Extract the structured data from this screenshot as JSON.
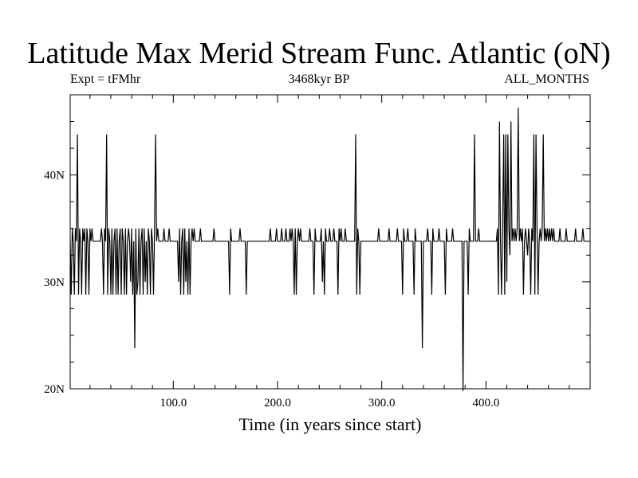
{
  "chart_data": {
    "type": "line",
    "title": "Latitude Max Merid Stream Func. Atlantic (oN)",
    "subtitle_left": "Expt = tFMhr",
    "subtitle_center": "3468kyr BP",
    "subtitle_right": "ALL_MONTHS",
    "xlabel": "Time (in years since start)",
    "ylabel": "",
    "xlim": [
      1,
      500
    ],
    "ylim": [
      20,
      47.5
    ],
    "x_ticks": [
      100,
      200,
      300,
      400
    ],
    "x_tick_labels": [
      "100.0",
      "200.0",
      "300.0",
      "400.0"
    ],
    "y_ticks": [
      20,
      30,
      40
    ],
    "y_tick_labels": [
      "20N",
      "30N",
      "40N"
    ],
    "grid": false,
    "series": [
      {
        "color": "#000000",
        "points": [
          [
            1,
            33.8
          ],
          [
            2,
            28.8
          ],
          [
            3,
            35
          ],
          [
            4,
            33.8
          ],
          [
            5,
            28.8
          ],
          [
            6,
            35
          ],
          [
            7,
            33.8
          ],
          [
            8,
            43.8
          ],
          [
            9,
            28.8
          ],
          [
            10,
            35
          ],
          [
            11,
            33.8
          ],
          [
            12,
            28.8
          ],
          [
            13,
            35
          ],
          [
            14,
            33.8
          ],
          [
            15,
            35
          ],
          [
            16,
            28.8
          ],
          [
            17,
            35
          ],
          [
            18,
            33.8
          ],
          [
            19,
            28.8
          ],
          [
            20,
            35
          ],
          [
            21,
            33.8
          ],
          [
            22,
            35
          ],
          [
            23,
            33.8
          ],
          [
            30,
            33.8
          ],
          [
            31,
            35
          ],
          [
            32,
            33.8
          ],
          [
            33,
            28.8
          ],
          [
            34,
            35
          ],
          [
            35,
            33.8
          ],
          [
            36,
            43.8
          ],
          [
            37,
            28.8
          ],
          [
            38,
            35
          ],
          [
            39,
            33.8
          ],
          [
            40,
            28.8
          ],
          [
            41,
            35
          ],
          [
            42,
            28.8
          ],
          [
            43,
            33.8
          ],
          [
            44,
            35
          ],
          [
            45,
            28.8
          ],
          [
            46,
            35
          ],
          [
            47,
            28.8
          ],
          [
            48,
            33.8
          ],
          [
            49,
            35
          ],
          [
            50,
            28.8
          ],
          [
            51,
            35
          ],
          [
            52,
            33.8
          ],
          [
            53,
            28.8
          ],
          [
            54,
            35
          ],
          [
            55,
            28.8
          ],
          [
            56,
            33.8
          ],
          [
            57,
            35
          ],
          [
            58,
            33.8
          ],
          [
            59,
            30
          ],
          [
            60,
            35
          ],
          [
            61,
            28.8
          ],
          [
            62,
            33.8
          ],
          [
            63,
            23.8
          ],
          [
            64,
            35
          ],
          [
            65,
            28.8
          ],
          [
            66,
            30
          ],
          [
            67,
            35
          ],
          [
            68,
            28.8
          ],
          [
            69,
            33.8
          ],
          [
            70,
            35
          ],
          [
            71,
            28.8
          ],
          [
            72,
            35
          ],
          [
            73,
            30
          ],
          [
            74,
            33.8
          ],
          [
            75,
            28.8
          ],
          [
            76,
            35
          ],
          [
            77,
            33.8
          ],
          [
            78,
            28.8
          ],
          [
            79,
            35
          ],
          [
            80,
            33.8
          ],
          [
            81,
            28.8
          ],
          [
            82,
            35
          ],
          [
            83,
            43.8
          ],
          [
            84,
            33.8
          ],
          [
            85,
            35
          ],
          [
            86,
            33.8
          ],
          [
            90,
            33.8
          ],
          [
            91,
            35
          ],
          [
            92,
            33.8
          ],
          [
            95,
            33.8
          ],
          [
            96,
            35
          ],
          [
            97,
            33.8
          ],
          [
            104,
            33.8
          ],
          [
            105,
            30
          ],
          [
            106,
            35
          ],
          [
            107,
            28.8
          ],
          [
            108,
            33.8
          ],
          [
            109,
            35
          ],
          [
            110,
            28.8
          ],
          [
            111,
            35
          ],
          [
            112,
            30
          ],
          [
            113,
            33.8
          ],
          [
            114,
            28.8
          ],
          [
            115,
            35
          ],
          [
            116,
            28.8
          ],
          [
            117,
            33.8
          ],
          [
            118,
            35
          ],
          [
            119,
            33.8
          ],
          [
            120,
            35
          ],
          [
            121,
            33.8
          ],
          [
            125,
            33.8
          ],
          [
            126,
            35
          ],
          [
            127,
            33.8
          ],
          [
            138,
            33.8
          ],
          [
            139,
            35
          ],
          [
            140,
            33.8
          ],
          [
            153,
            33.8
          ],
          [
            154,
            28.8
          ],
          [
            155,
            35
          ],
          [
            156,
            33.8
          ],
          [
            163,
            33.8
          ],
          [
            164,
            35
          ],
          [
            165,
            33.8
          ],
          [
            169,
            33.8
          ],
          [
            170,
            28.8
          ],
          [
            171,
            33.8
          ],
          [
            192,
            33.8
          ],
          [
            193,
            35
          ],
          [
            194,
            33.8
          ],
          [
            198,
            33.8
          ],
          [
            199,
            35
          ],
          [
            200,
            33.8
          ],
          [
            203,
            33.8
          ],
          [
            204,
            35
          ],
          [
            205,
            33.8
          ],
          [
            207,
            33.8
          ],
          [
            208,
            35
          ],
          [
            209,
            33.8
          ],
          [
            211,
            33.8
          ],
          [
            212,
            35
          ],
          [
            213,
            33.8
          ],
          [
            214,
            35
          ],
          [
            215,
            33.8
          ],
          [
            216,
            28.8
          ],
          [
            217,
            35
          ],
          [
            218,
            28.8
          ],
          [
            219,
            33.8
          ],
          [
            220,
            35
          ],
          [
            221,
            33.8
          ],
          [
            222,
            35
          ],
          [
            223,
            33.8
          ],
          [
            230,
            33.8
          ],
          [
            231,
            35
          ],
          [
            232,
            33.8
          ],
          [
            234,
            33.8
          ],
          [
            235,
            28.8
          ],
          [
            236,
            35
          ],
          [
            237,
            33.8
          ],
          [
            241,
            33.8
          ],
          [
            242,
            35
          ],
          [
            243,
            30
          ],
          [
            244,
            33.8
          ],
          [
            245,
            28.8
          ],
          [
            246,
            35
          ],
          [
            247,
            33.8
          ],
          [
            249,
            33.8
          ],
          [
            250,
            35
          ],
          [
            251,
            33.8
          ],
          [
            253,
            33.8
          ],
          [
            254,
            35
          ],
          [
            255,
            33.8
          ],
          [
            257,
            33.8
          ],
          [
            258,
            28.8
          ],
          [
            259,
            35
          ],
          [
            260,
            33.8
          ],
          [
            261,
            35
          ],
          [
            262,
            33.8
          ],
          [
            264,
            33.8
          ],
          [
            265,
            35
          ],
          [
            266,
            33.8
          ],
          [
            274,
            33.8
          ],
          [
            275,
            43.8
          ],
          [
            276,
            28.8
          ],
          [
            277,
            35
          ],
          [
            278,
            33.8
          ],
          [
            279,
            28.8
          ],
          [
            280,
            33.8
          ],
          [
            296,
            33.8
          ],
          [
            297,
            35
          ],
          [
            298,
            33.8
          ],
          [
            306,
            33.8
          ],
          [
            307,
            35
          ],
          [
            308,
            33.8
          ],
          [
            314,
            33.8
          ],
          [
            315,
            35
          ],
          [
            316,
            33.8
          ],
          [
            319,
            33.8
          ],
          [
            320,
            28.8
          ],
          [
            321,
            35
          ],
          [
            322,
            33.8
          ],
          [
            324,
            33.8
          ],
          [
            325,
            35
          ],
          [
            326,
            33.8
          ],
          [
            330,
            33.8
          ],
          [
            331,
            28.8
          ],
          [
            332,
            35
          ],
          [
            333,
            33.8
          ],
          [
            338,
            33.8
          ],
          [
            339,
            23.8
          ],
          [
            340,
            33.8
          ],
          [
            343,
            33.8
          ],
          [
            344,
            35
          ],
          [
            345,
            33.8
          ],
          [
            347,
            33.8
          ],
          [
            348,
            28.8
          ],
          [
            349,
            35
          ],
          [
            350,
            33.8
          ],
          [
            354,
            33.8
          ],
          [
            355,
            35
          ],
          [
            356,
            33.8
          ],
          [
            360,
            33.8
          ],
          [
            361,
            28.8
          ],
          [
            362,
            35
          ],
          [
            363,
            33.8
          ],
          [
            367,
            33.8
          ],
          [
            368,
            35
          ],
          [
            369,
            33.8
          ],
          [
            377,
            33.8
          ],
          [
            378,
            19.8
          ],
          [
            379,
            33.8
          ],
          [
            382,
            33.8
          ],
          [
            383,
            28.8
          ],
          [
            384,
            35
          ],
          [
            385,
            33.8
          ],
          [
            388,
            33.8
          ],
          [
            389,
            43.8
          ],
          [
            390,
            33.8
          ],
          [
            392,
            33.8
          ],
          [
            393,
            35
          ],
          [
            394,
            33.8
          ],
          [
            410,
            33.8
          ],
          [
            411,
            35
          ],
          [
            412,
            28.8
          ],
          [
            413,
            45
          ],
          [
            414,
            33.8
          ],
          [
            415,
            28.8
          ],
          [
            416,
            35
          ],
          [
            417,
            43.8
          ],
          [
            418,
            28.8
          ],
          [
            419,
            43.8
          ],
          [
            420,
            30
          ],
          [
            421,
            43.8
          ],
          [
            422,
            35
          ],
          [
            423,
            32.5
          ],
          [
            424,
            45
          ],
          [
            425,
            33.8
          ],
          [
            426,
            35
          ],
          [
            427,
            33.8
          ],
          [
            428,
            35
          ],
          [
            429,
            33.8
          ],
          [
            430,
            35
          ],
          [
            431,
            46.3
          ],
          [
            432,
            33.8
          ],
          [
            433,
            35
          ],
          [
            434,
            33.8
          ],
          [
            435,
            35
          ],
          [
            436,
            28.8
          ],
          [
            437,
            33.8
          ],
          [
            438,
            35
          ],
          [
            439,
            33.8
          ],
          [
            440,
            32.5
          ],
          [
            441,
            35
          ],
          [
            442,
            33.8
          ],
          [
            443,
            28.8
          ],
          [
            444,
            35
          ],
          [
            445,
            33.8
          ],
          [
            446,
            43.8
          ],
          [
            447,
            28.8
          ],
          [
            448,
            43.8
          ],
          [
            449,
            35
          ],
          [
            450,
            28.8
          ],
          [
            451,
            33.8
          ],
          [
            452,
            35
          ],
          [
            453,
            33.8
          ],
          [
            454,
            35
          ],
          [
            455,
            43.8
          ],
          [
            456,
            33.8
          ],
          [
            457,
            35
          ],
          [
            458,
            33.8
          ],
          [
            459,
            35
          ],
          [
            460,
            33.8
          ],
          [
            461,
            35
          ],
          [
            462,
            33.8
          ],
          [
            463,
            35
          ],
          [
            464,
            33.8
          ],
          [
            465,
            35
          ],
          [
            466,
            33.8
          ],
          [
            470,
            33.8
          ],
          [
            471,
            35
          ],
          [
            472,
            33.8
          ],
          [
            476,
            33.8
          ],
          [
            477,
            35
          ],
          [
            478,
            33.8
          ],
          [
            485,
            33.8
          ],
          [
            486,
            35
          ],
          [
            487,
            33.8
          ],
          [
            492,
            33.8
          ],
          [
            493,
            35
          ],
          [
            494,
            33.8
          ],
          [
            500,
            33.8
          ]
        ]
      }
    ]
  }
}
